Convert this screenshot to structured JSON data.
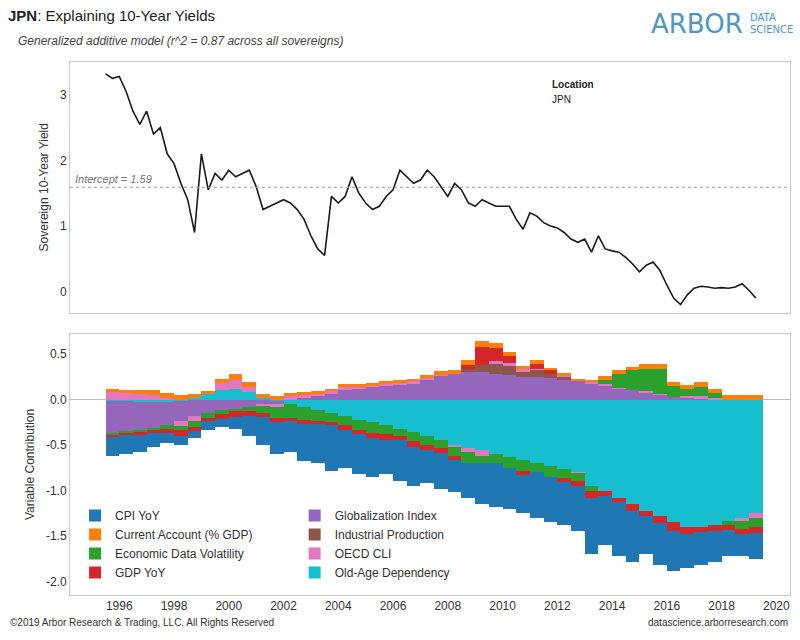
{
  "chart_data": [
    {
      "type": "line",
      "title": "JPN: Explaining 10-Year Yields",
      "subtitle": "Generalized additive model (r^2 = 0.87 across all sovereigns)",
      "y_label": "Sovereign 10-Year Yield",
      "x": [
        1995.5,
        1995.75,
        1996,
        1996.25,
        1996.5,
        1996.75,
        1997,
        1997.25,
        1997.5,
        1997.75,
        1998,
        1998.25,
        1998.5,
        1998.75,
        1999,
        1999.25,
        1999.5,
        1999.75,
        2000,
        2000.25,
        2000.5,
        2000.75,
        2001,
        2001.25,
        2001.5,
        2001.75,
        2002,
        2002.25,
        2002.5,
        2002.75,
        2003,
        2003.25,
        2003.5,
        2003.75,
        2004,
        2004.25,
        2004.5,
        2004.75,
        2005,
        2005.25,
        2005.5,
        2005.75,
        2006,
        2006.25,
        2006.5,
        2006.75,
        2007,
        2007.25,
        2007.5,
        2007.75,
        2008,
        2008.25,
        2008.5,
        2008.75,
        2009,
        2009.25,
        2009.5,
        2009.75,
        2010,
        2010.25,
        2010.5,
        2010.75,
        2011,
        2011.25,
        2011.5,
        2011.75,
        2012,
        2012.25,
        2012.5,
        2012.75,
        2013,
        2013.25,
        2013.5,
        2013.75,
        2014,
        2014.25,
        2014.5,
        2014.75,
        2015,
        2015.25,
        2015.5,
        2015.75,
        2016,
        2016.25,
        2016.5,
        2016.75,
        2017,
        2017.25,
        2017.5,
        2017.75,
        2018,
        2018.25,
        2018.5,
        2018.75,
        2019,
        2019.25
      ],
      "values": [
        3.32,
        3.25,
        3.28,
        3.05,
        2.75,
        2.55,
        2.75,
        2.4,
        2.5,
        2.1,
        1.95,
        1.65,
        1.4,
        0.9,
        2.1,
        1.55,
        1.8,
        1.7,
        1.85,
        1.75,
        1.8,
        1.85,
        1.6,
        1.25,
        1.3,
        1.35,
        1.4,
        1.35,
        1.25,
        1.1,
        0.85,
        0.65,
        0.55,
        1.45,
        1.35,
        1.45,
        1.75,
        1.5,
        1.35,
        1.25,
        1.3,
        1.45,
        1.55,
        1.85,
        1.75,
        1.65,
        1.7,
        1.85,
        1.75,
        1.6,
        1.45,
        1.65,
        1.55,
        1.35,
        1.3,
        1.4,
        1.35,
        1.3,
        1.3,
        1.3,
        1.1,
        0.95,
        1.2,
        1.15,
        1.05,
        1,
        0.97,
        0.9,
        0.8,
        0.75,
        0.8,
        0.6,
        0.85,
        0.65,
        0.62,
        0.6,
        0.52,
        0.42,
        0.3,
        0.4,
        0.45,
        0.32,
        0.1,
        -0.1,
        -0.2,
        -0.05,
        0.05,
        0.08,
        0.07,
        0.05,
        0.06,
        0.05,
        0.07,
        0.12,
        0.02,
        -0.1
      ],
      "color": "#1a1a1a",
      "xlim": [
        1994.2,
        2020.5
      ],
      "ylim": [
        -0.32,
        3.5
      ],
      "yticks": [
        0,
        1,
        2,
        3
      ],
      "grid": false,
      "tick_labels": "y",
      "reference_line": {
        "value": 1.59,
        "label": "Intercept = 1.59"
      },
      "annotations": [
        "Location",
        "JPN"
      ]
    },
    {
      "type": "bar",
      "stacked": true,
      "y_label": "Variable Contribution",
      "x": [
        1995.75,
        1996.25,
        1996.75,
        1997.25,
        1997.75,
        1998.25,
        1998.75,
        1999.25,
        1999.75,
        2000.25,
        2000.75,
        2001.25,
        2001.75,
        2002.25,
        2002.75,
        2003.25,
        2003.75,
        2004.25,
        2004.75,
        2005.25,
        2005.75,
        2006.25,
        2006.75,
        2007.25,
        2007.75,
        2008.25,
        2008.75,
        2009.25,
        2009.75,
        2010.25,
        2010.75,
        2011.25,
        2011.75,
        2012.25,
        2012.75,
        2013.25,
        2013.75,
        2014.25,
        2014.75,
        2015.25,
        2015.75,
        2016.25,
        2016.75,
        2017.25,
        2017.75,
        2018.25,
        2018.75,
        2019.25
      ],
      "series": [
        {
          "name": "CPI YoY",
          "color": "#1f77b4",
          "values": [
            -0.21,
            -0.21,
            -0.19,
            -0.15,
            -0.11,
            -0.1,
            -0.07,
            -0.09,
            -0.09,
            -0.13,
            -0.22,
            -0.31,
            -0.35,
            -0.34,
            -0.41,
            -0.43,
            -0.5,
            -0.42,
            -0.44,
            -0.43,
            -0.38,
            -0.45,
            -0.43,
            -0.37,
            -0.39,
            -0.35,
            -0.38,
            -0.45,
            -0.48,
            -0.45,
            -0.42,
            -0.5,
            -0.5,
            -0.47,
            -0.5,
            -0.62,
            -0.54,
            -0.59,
            -0.55,
            -0.42,
            -0.46,
            -0.43,
            -0.37,
            -0.36,
            -0.34,
            -0.29,
            -0.24,
            -0.28
          ]
        },
        {
          "name": "Current Account (% GDP)",
          "color": "#ff7f0e",
          "values": [
            0.04,
            0.04,
            0.04,
            0.05,
            0.05,
            0.05,
            0.04,
            0.03,
            0.05,
            0.06,
            0.05,
            0.04,
            0.04,
            0.03,
            0.03,
            0.03,
            0.03,
            0.03,
            0.03,
            0.03,
            0.03,
            0.03,
            0.03,
            0.03,
            0.04,
            0.04,
            0.05,
            0.06,
            0.05,
            0.04,
            0.04,
            0.04,
            0.03,
            0.03,
            0.03,
            0.03,
            0.04,
            0.04,
            0.04,
            0.05,
            0.05,
            0.04,
            0.04,
            0.05,
            0.05,
            0.05,
            0.05,
            0.05
          ]
        },
        {
          "name": "Economic Data Volatility",
          "color": "#2ca02c",
          "values": [
            -0.02,
            -0.02,
            -0.03,
            -0.03,
            -0.04,
            -0.05,
            -0.06,
            -0.05,
            -0.04,
            -0.03,
            -0.05,
            -0.08,
            -0.12,
            -0.15,
            -0.14,
            -0.12,
            -0.1,
            -0.1,
            -0.12,
            -0.12,
            -0.1,
            -0.08,
            -0.1,
            -0.1,
            -0.08,
            -0.1,
            -0.12,
            -0.08,
            -0.1,
            -0.12,
            -0.12,
            -0.1,
            -0.12,
            -0.1,
            -0.08,
            -0.05,
            0.05,
            0.15,
            0.22,
            0.25,
            0.28,
            0.12,
            0.08,
            0.1,
            0.05,
            -0.05,
            -0.08,
            -0.1
          ]
        },
        {
          "name": "GDP YoY",
          "color": "#d62728",
          "values": [
            -0.02,
            -0.02,
            -0.03,
            -0.03,
            -0.05,
            -0.06,
            -0.05,
            -0.04,
            -0.05,
            -0.06,
            -0.05,
            -0.04,
            -0.05,
            -0.04,
            -0.05,
            -0.03,
            -0.03,
            -0.05,
            -0.04,
            -0.05,
            -0.06,
            -0.05,
            -0.06,
            -0.05,
            -0.06,
            -0.05,
            0.05,
            0.2,
            0.15,
            0.08,
            -0.05,
            0.05,
            0.04,
            -0.05,
            -0.06,
            -0.08,
            -0.06,
            -0.05,
            -0.08,
            -0.06,
            -0.08,
            -0.1,
            -0.08,
            -0.06,
            -0.06,
            -0.05,
            -0.06,
            -0.07
          ]
        },
        {
          "name": "Globalization Index",
          "color": "#9467bd",
          "values": [
            -0.35,
            -0.33,
            -0.3,
            -0.28,
            -0.25,
            -0.22,
            -0.18,
            -0.15,
            -0.12,
            -0.1,
            -0.08,
            -0.05,
            -0.03,
            0,
            0.02,
            0.04,
            0.06,
            0.1,
            0.12,
            0.14,
            0.15,
            0.16,
            0.18,
            0.22,
            0.26,
            0.28,
            0.3,
            0.3,
            0.28,
            0.27,
            0.25,
            0.25,
            0.24,
            0.22,
            0.2,
            0.18,
            0.15,
            0.12,
            0.1,
            0.08,
            0.05,
            0.03,
            0.02,
            0.01,
            0,
            0,
            0,
            0
          ]
        },
        {
          "name": "Industrial Production",
          "color": "#8c564b",
          "values": [
            0,
            0,
            0,
            0,
            0,
            0,
            0,
            0,
            0,
            0,
            0,
            0,
            0,
            0,
            0,
            0,
            0,
            0,
            0,
            0,
            0,
            0,
            0,
            0,
            0,
            0,
            0.03,
            0.08,
            0.12,
            0.1,
            0.06,
            0.08,
            0.04,
            0.03,
            0,
            0,
            0,
            0,
            0,
            0,
            0,
            0,
            0,
            0,
            0,
            0,
            0,
            0
          ]
        },
        {
          "name": "OECD CLI",
          "color": "#e377c2",
          "values": [
            0.08,
            0.07,
            0.06,
            0.05,
            0.02,
            -0.05,
            -0.06,
            0,
            0.08,
            0.1,
            0.06,
            -0.02,
            -0.03,
            0.04,
            0.03,
            0.02,
            0.03,
            0.04,
            0.02,
            0.01,
            0.02,
            0.02,
            0.02,
            0.02,
            0.01,
            -0.02,
            -0.05,
            -0.06,
            0.02,
            0.03,
            0.02,
            0.01,
            0,
            0.01,
            -0.01,
            0.01,
            0.02,
            0.01,
            0,
            0.01,
            0.01,
            0,
            0.02,
            0.03,
            0.02,
            0,
            -0.04,
            -0.05
          ]
        },
        {
          "name": "Old-Age Dependency",
          "color": "#17becf",
          "values": [
            -0.02,
            -0.02,
            -0.03,
            -0.03,
            -0.03,
            -0.02,
            0.02,
            0.06,
            0.1,
            0.12,
            0.08,
            0.02,
            -0.02,
            -0.05,
            -0.08,
            -0.12,
            -0.15,
            -0.18,
            -0.22,
            -0.25,
            -0.28,
            -0.32,
            -0.36,
            -0.4,
            -0.45,
            -0.5,
            -0.53,
            -0.56,
            -0.6,
            -0.63,
            -0.66,
            -0.7,
            -0.73,
            -0.76,
            -0.8,
            -0.95,
            -1,
            -1.08,
            -1.15,
            -1.22,
            -1.28,
            -1.35,
            -1.4,
            -1.4,
            -1.38,
            -1.33,
            -1.3,
            -1.25
          ]
        }
      ],
      "xlim": [
        1994.2,
        2020.5
      ],
      "xticks": [
        1996,
        1998,
        2000,
        2002,
        2004,
        2006,
        2008,
        2010,
        2012,
        2014,
        2016,
        2018,
        2020
      ],
      "ylim": [
        -2.15,
        0.72
      ],
      "yticks": [
        0.5,
        {
          "value": 0,
          "label": "0.0"
        },
        -0.5,
        {
          "value": -1,
          "label": "-1.0"
        },
        -1.5,
        {
          "value": -2,
          "label": "-2.0"
        }
      ],
      "grid": false,
      "legend": "lower left"
    }
  ],
  "logo": {
    "name": "ARBOR",
    "tagline": [
      "DATA",
      "SCIENCE"
    ]
  },
  "footer": {
    "left": "©2019 Arbor Research & Trading, LLC. All Rights Reserved",
    "right": "datascience.arborresearch.com"
  }
}
